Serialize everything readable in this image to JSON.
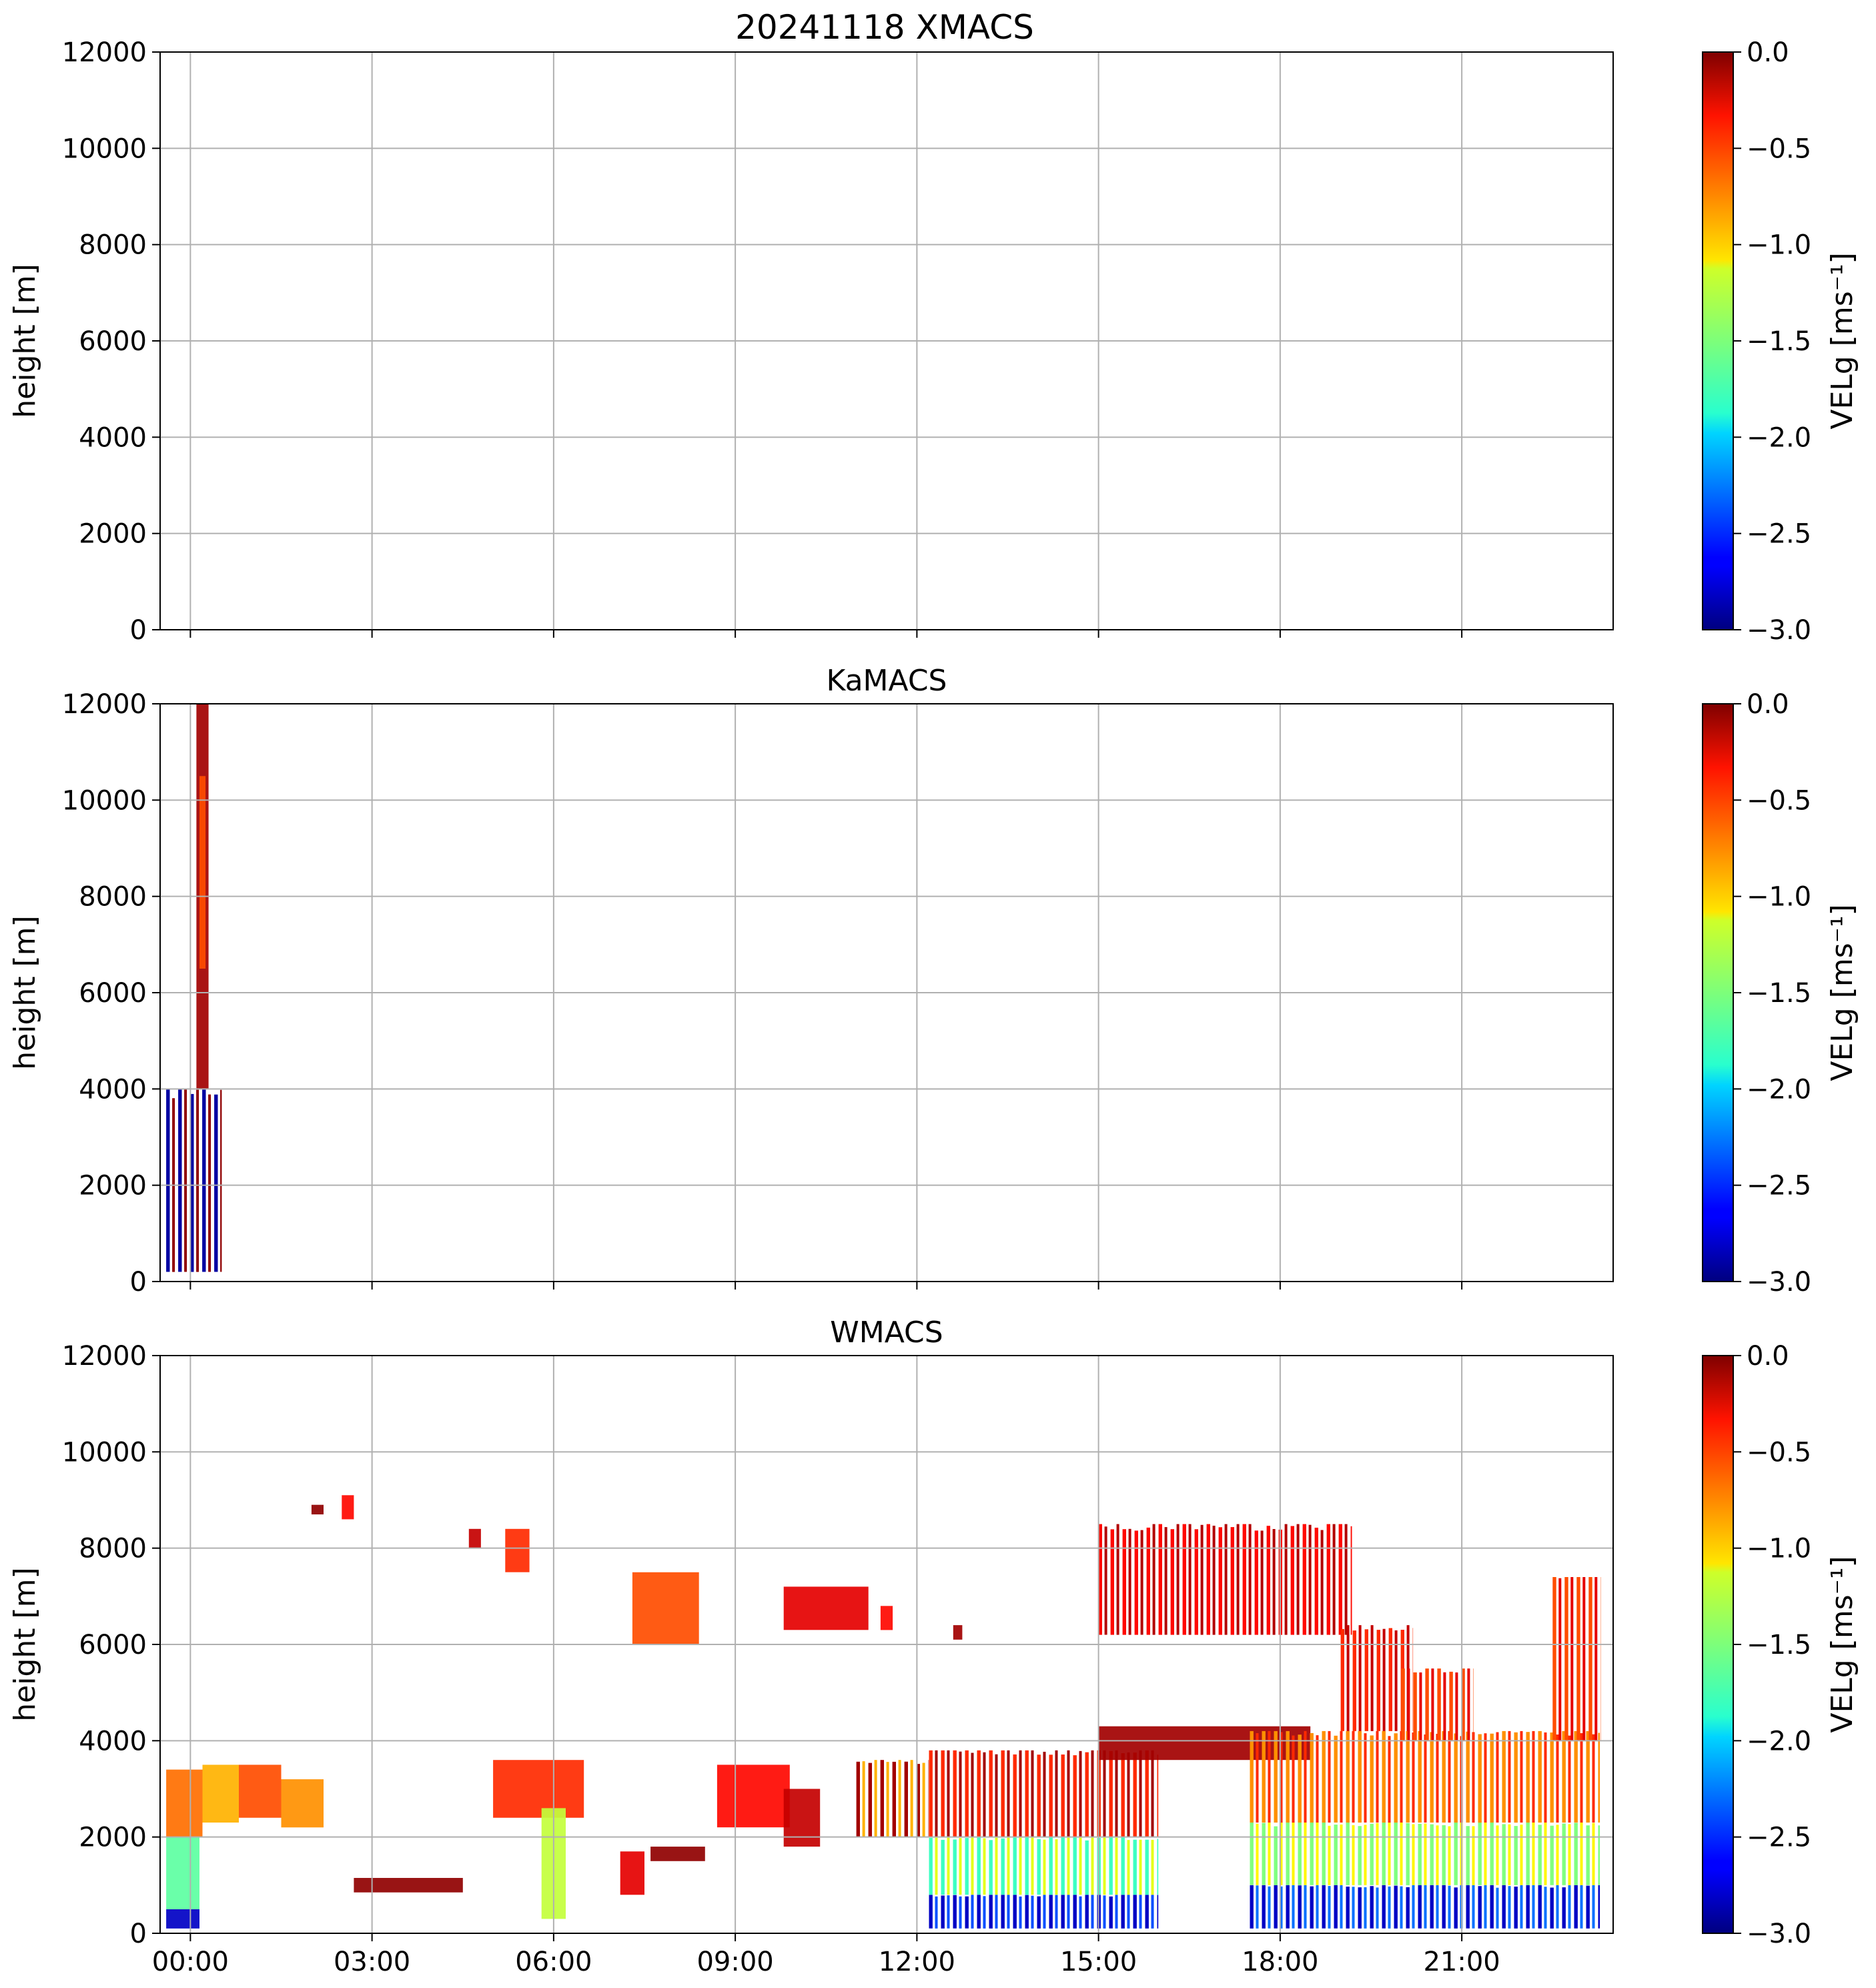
{
  "figure": {
    "suptitle": "20241118 XMACS",
    "colormap": "jet"
  },
  "chart_data": [
    {
      "type": "heatmap",
      "title": "",
      "xlabel": "",
      "ylabel": "height [m]",
      "xlim_hours": [
        -0.5,
        23.5
      ],
      "ylim": [
        0,
        12000
      ],
      "yticks": [
        0,
        2000,
        4000,
        6000,
        8000,
        10000,
        12000
      ],
      "ytick_labels": [
        "0",
        "2000",
        "4000",
        "6000",
        "8000",
        "10000",
        "12000"
      ],
      "xticks_hours": [
        0,
        3,
        6,
        9,
        12,
        15,
        18,
        21
      ],
      "xtick_labels": [],
      "grid": true,
      "colorbar": {
        "label": "VELg [ms⁻¹]",
        "range": [
          -3.0,
          0.0
        ],
        "ticks": [
          -3.0,
          -2.5,
          -2.0,
          -1.5,
          -1.0,
          -0.5,
          0.0
        ],
        "tick_labels": [
          "−3.0",
          "−2.5",
          "−2.0",
          "−1.5",
          "−1.0",
          "−0.5",
          "0.0"
        ]
      },
      "regions": []
    },
    {
      "type": "heatmap",
      "title": "KaMACS",
      "xlabel": "",
      "ylabel": "height [m]",
      "xlim_hours": [
        -0.5,
        23.5
      ],
      "ylim": [
        0,
        12000
      ],
      "yticks": [
        0,
        2000,
        4000,
        6000,
        8000,
        10000,
        12000
      ],
      "ytick_labels": [
        "0",
        "2000",
        "4000",
        "6000",
        "8000",
        "10000",
        "12000"
      ],
      "xticks_hours": [
        0,
        3,
        6,
        9,
        12,
        15,
        18,
        21
      ],
      "xtick_labels": [],
      "grid": true,
      "colorbar": {
        "label": "VELg [ms⁻¹]",
        "range": [
          -3.0,
          0.0
        ],
        "ticks": [
          -3.0,
          -2.5,
          -2.0,
          -1.5,
          -1.0,
          -0.5,
          0.0
        ],
        "tick_labels": [
          "−3.0",
          "−2.5",
          "−2.0",
          "−1.5",
          "−1.0",
          "−0.5",
          "0.0"
        ]
      },
      "regions": [
        {
          "t0": -0.4,
          "t1": 0.55,
          "h0": 200,
          "h1": 4000,
          "v": -2.9,
          "striped": true,
          "stripe_v": -0.05
        },
        {
          "t0": 0.1,
          "t1": 0.3,
          "h0": 4000,
          "h1": 12000,
          "v": -0.1
        },
        {
          "t0": 0.15,
          "t1": 0.25,
          "h0": 6500,
          "h1": 10500,
          "v": -0.6
        }
      ]
    },
    {
      "type": "heatmap",
      "title": "WMACS",
      "xlabel": "",
      "ylabel": "height [m]",
      "xlim_hours": [
        -0.5,
        23.5
      ],
      "ylim": [
        0,
        12000
      ],
      "yticks": [
        0,
        2000,
        4000,
        6000,
        8000,
        10000,
        12000
      ],
      "ytick_labels": [
        "0",
        "2000",
        "4000",
        "6000",
        "8000",
        "10000",
        "12000"
      ],
      "xticks_hours": [
        0,
        3,
        6,
        9,
        12,
        15,
        18,
        21
      ],
      "xtick_labels": [
        "00:00",
        "03:00",
        "06:00",
        "09:00",
        "12:00",
        "15:00",
        "18:00",
        "21:00"
      ],
      "grid": true,
      "colorbar": {
        "label": "VELg [ms⁻¹]",
        "range": [
          -3.0,
          0.0
        ],
        "ticks": [
          -3.0,
          -2.5,
          -2.0,
          -1.5,
          -1.0,
          -0.5,
          0.0
        ],
        "tick_labels": [
          "−3.0",
          "−2.5",
          "−2.0",
          "−1.5",
          "−1.0",
          "−0.5",
          "0.0"
        ]
      },
      "regions": [
        {
          "t0": -0.4,
          "t1": 0.15,
          "h0": 100,
          "h1": 500,
          "v": -2.8
        },
        {
          "t0": -0.4,
          "t1": 0.15,
          "h0": 500,
          "h1": 2000,
          "v": -1.6
        },
        {
          "t0": -0.4,
          "t1": 0.2,
          "h0": 2000,
          "h1": 3400,
          "v": -0.7
        },
        {
          "t0": 0.2,
          "t1": 0.8,
          "h0": 2300,
          "h1": 3500,
          "v": -0.9
        },
        {
          "t0": 0.8,
          "t1": 1.5,
          "h0": 2400,
          "h1": 3500,
          "v": -0.6
        },
        {
          "t0": 1.5,
          "t1": 2.2,
          "h0": 2200,
          "h1": 3200,
          "v": -0.8
        },
        {
          "t0": 2.0,
          "t1": 2.2,
          "h0": 8700,
          "h1": 8900,
          "v": -0.05
        },
        {
          "t0": 2.5,
          "t1": 2.7,
          "h0": 8600,
          "h1": 9100,
          "v": -0.4
        },
        {
          "t0": 2.7,
          "t1": 4.5,
          "h0": 850,
          "h1": 1150,
          "v": -0.05
        },
        {
          "t0": 4.6,
          "t1": 4.8,
          "h0": 8000,
          "h1": 8400,
          "v": -0.2
        },
        {
          "t0": 5.2,
          "t1": 5.6,
          "h0": 7500,
          "h1": 8400,
          "v": -0.5
        },
        {
          "t0": 5.0,
          "t1": 6.5,
          "h0": 2400,
          "h1": 3600,
          "v": -0.5
        },
        {
          "t0": 5.8,
          "t1": 6.2,
          "h0": 300,
          "h1": 2600,
          "v": -1.3
        },
        {
          "t0": 7.1,
          "t1": 7.5,
          "h0": 800,
          "h1": 1700,
          "v": -0.3
        },
        {
          "t0": 7.6,
          "t1": 8.5,
          "h0": 1500,
          "h1": 1800,
          "v": -0.05
        },
        {
          "t0": 7.3,
          "t1": 8.4,
          "h0": 6000,
          "h1": 7500,
          "v": -0.6
        },
        {
          "t0": 8.7,
          "t1": 9.9,
          "h0": 2200,
          "h1": 3500,
          "v": -0.4
        },
        {
          "t0": 9.8,
          "t1": 10.4,
          "h0": 1800,
          "h1": 3000,
          "v": -0.2
        },
        {
          "t0": 9.8,
          "t1": 11.2,
          "h0": 6300,
          "h1": 7200,
          "v": -0.3
        },
        {
          "t0": 11.4,
          "t1": 11.6,
          "h0": 6300,
          "h1": 6800,
          "v": -0.4
        },
        {
          "t0": 12.6,
          "t1": 12.75,
          "h0": 6100,
          "h1": 6400,
          "v": -0.1
        },
        {
          "t0": 11.0,
          "t1": 12.2,
          "h0": 2000,
          "h1": 3600,
          "v": -0.1,
          "striped": true,
          "stripe_v": -0.9
        },
        {
          "t0": 12.2,
          "t1": 16.0,
          "h0": 100,
          "h1": 800,
          "v": -2.8,
          "striped": true,
          "stripe_v": -2.4
        },
        {
          "t0": 12.2,
          "t1": 16.0,
          "h0": 800,
          "h1": 2000,
          "v": -1.7,
          "striped": true,
          "stripe_v": -1.2
        },
        {
          "t0": 12.2,
          "t1": 16.0,
          "h0": 2000,
          "h1": 3800,
          "v": -0.5,
          "striped": true,
          "stripe_v": -0.1
        },
        {
          "t0": 15.0,
          "t1": 18.5,
          "h0": 3600,
          "h1": 4300,
          "v": -0.1
        },
        {
          "t0": 15.0,
          "t1": 19.2,
          "h0": 6200,
          "h1": 8500,
          "v": -0.4,
          "striped": true,
          "stripe_v": -0.15
        },
        {
          "t0": 17.5,
          "t1": 23.3,
          "h0": 100,
          "h1": 1000,
          "v": -2.8,
          "striped": true,
          "stripe_v": -2.3
        },
        {
          "t0": 17.5,
          "t1": 23.3,
          "h0": 1000,
          "h1": 2300,
          "v": -1.5,
          "striped": true,
          "stripe_v": -1.1
        },
        {
          "t0": 17.5,
          "t1": 23.3,
          "h0": 2300,
          "h1": 4200,
          "v": -0.8,
          "striped": true,
          "stripe_v": -0.5
        },
        {
          "t0": 19.0,
          "t1": 20.2,
          "h0": 4200,
          "h1": 6400,
          "v": -0.5,
          "striped": true,
          "stripe_v": -0.2
        },
        {
          "t0": 20.0,
          "t1": 21.2,
          "h0": 4000,
          "h1": 5500,
          "v": -0.6,
          "striped": true,
          "stripe_v": -0.3
        },
        {
          "t0": 22.5,
          "t1": 23.3,
          "h0": 4000,
          "h1": 7400,
          "v": -0.6,
          "striped": true,
          "stripe_v": -0.3
        }
      ]
    }
  ]
}
